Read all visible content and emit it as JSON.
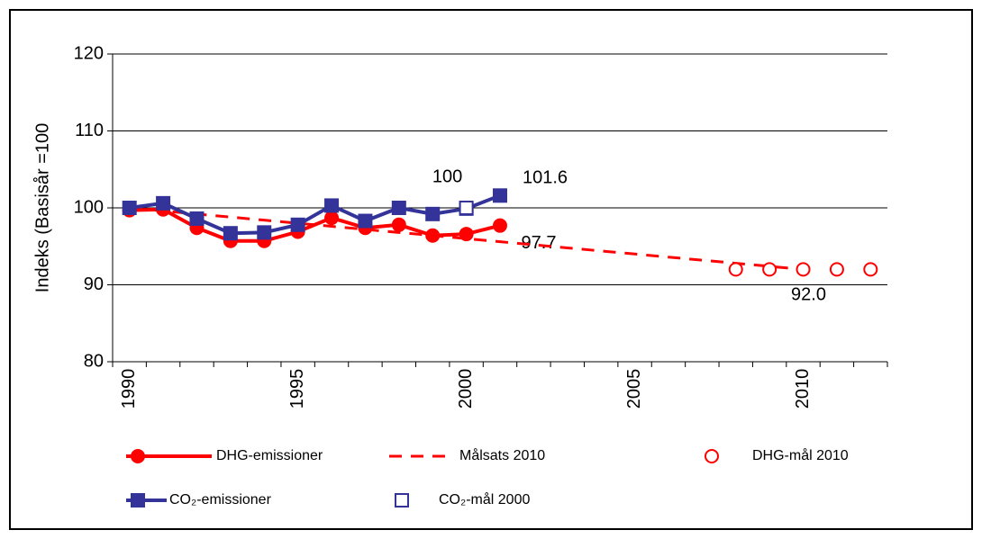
{
  "chart_data": {
    "type": "line",
    "y_label": "Indeks (Basisår =100",
    "categories": [
      "1990",
      null,
      null,
      null,
      null,
      "1995",
      null,
      null,
      null,
      null,
      "2000",
      null,
      null,
      null,
      null,
      "2005",
      null,
      null,
      null,
      null,
      "2010",
      null,
      null
    ],
    "series": [
      {
        "name": "DHG-emissioner",
        "color": "#ff0000",
        "line": "solid",
        "marker": "circle",
        "filled": true,
        "values": [
          99.7,
          99.8,
          97.4,
          95.7,
          95.7,
          96.9,
          98.7,
          97.4,
          97.8,
          96.4,
          96.6,
          97.7,
          null,
          null,
          null,
          null,
          null,
          null,
          null,
          null,
          null,
          null,
          null
        ],
        "value_labels": [
          null,
          null,
          null,
          null,
          null,
          null,
          null,
          null,
          null,
          null,
          null,
          "97.7",
          null,
          null,
          null,
          null,
          null,
          null,
          null,
          null,
          null,
          null,
          null
        ]
      },
      {
        "name": "Målsats 2010",
        "color": "#ff0000",
        "line": "dashed",
        "marker": "none",
        "filled": false,
        "values": [
          100,
          99.6,
          99.2,
          98.8,
          98.4,
          98.0,
          97.6,
          97.2,
          96.8,
          96.4,
          96.0,
          95.6,
          95.2,
          94.8,
          94.4,
          94.0,
          93.6,
          93.2,
          92.8,
          92.4,
          92.0,
          null,
          null
        ]
      },
      {
        "name": "DHG-mål 2010",
        "color": "#ff0000",
        "line": "none",
        "marker": "circle",
        "filled": false,
        "values": [
          null,
          null,
          null,
          null,
          null,
          null,
          null,
          null,
          null,
          null,
          null,
          null,
          null,
          null,
          null,
          null,
          null,
          null,
          92.0,
          92.0,
          92.0,
          92.0,
          92.0
        ],
        "value_labels": [
          null,
          null,
          null,
          null,
          null,
          null,
          null,
          null,
          null,
          null,
          null,
          null,
          null,
          null,
          null,
          null,
          null,
          null,
          null,
          null,
          "92.0",
          null,
          null
        ]
      },
      {
        "name": "CO₂-emissioner",
        "color": "#333399",
        "line": "solid",
        "marker": "square",
        "filled": true,
        "values": [
          100.0,
          100.6,
          98.6,
          96.7,
          96.8,
          97.8,
          100.3,
          98.3,
          100.0,
          99.2,
          99.9,
          101.6,
          null,
          null,
          null,
          null,
          null,
          null,
          null,
          null,
          null,
          null,
          null
        ],
        "value_labels": [
          null,
          null,
          null,
          null,
          null,
          null,
          null,
          null,
          null,
          null,
          null,
          "101.6",
          null,
          null,
          null,
          null,
          null,
          null,
          null,
          null,
          null,
          null,
          null
        ],
        "label_color": "#0000ff"
      },
      {
        "name": "CO₂-mål 2000",
        "color": "#333399",
        "line": "none",
        "marker": "square",
        "filled": false,
        "values": [
          null,
          null,
          null,
          null,
          null,
          null,
          null,
          null,
          null,
          null,
          100,
          null,
          null,
          null,
          null,
          null,
          null,
          null,
          null,
          null,
          null,
          null,
          null
        ],
        "value_labels": [
          null,
          null,
          null,
          null,
          null,
          null,
          null,
          null,
          null,
          null,
          "100",
          null,
          null,
          null,
          null,
          null,
          null,
          null,
          null,
          null,
          null,
          null,
          null
        ]
      }
    ],
    "ylim": [
      80,
      120
    ],
    "yticks": [
      80,
      90,
      100,
      110,
      120
    ],
    "grid": true
  }
}
